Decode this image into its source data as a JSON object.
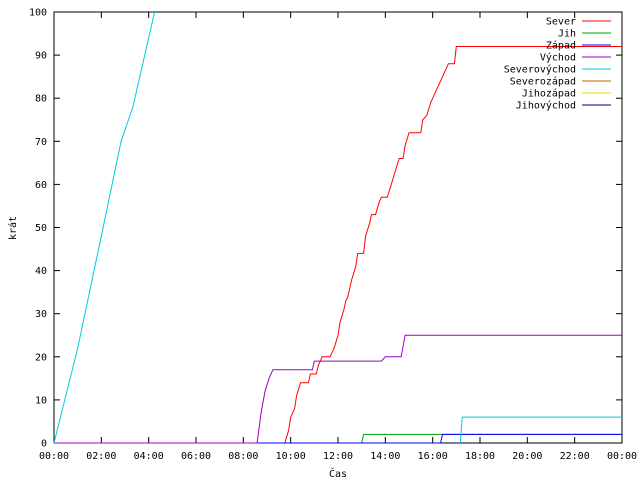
{
  "chart_data": {
    "type": "line",
    "xlabel": "Čas",
    "ylabel": "krát",
    "x_unit": "time of day (HH:MM)",
    "xlim": [
      "00:00",
      "24:00"
    ],
    "ylim": [
      0,
      100
    ],
    "x_ticks": [
      "00:00",
      "02:00",
      "04:00",
      "06:00",
      "08:00",
      "10:00",
      "12:00",
      "14:00",
      "16:00",
      "18:00",
      "20:00",
      "22:00",
      "00:00"
    ],
    "y_ticks": [
      0,
      10,
      20,
      30,
      40,
      50,
      60,
      70,
      80,
      90,
      100
    ],
    "grid": false,
    "legend_position": "top-right",
    "series": [
      {
        "name": "Sever",
        "color": "#ff0000",
        "points": [
          [
            "09:45",
            0
          ],
          [
            "09:55",
            3
          ],
          [
            "10:00",
            6
          ],
          [
            "10:10",
            8
          ],
          [
            "10:15",
            11
          ],
          [
            "10:25",
            14
          ],
          [
            "10:45",
            14
          ],
          [
            "10:50",
            16
          ],
          [
            "11:05",
            16
          ],
          [
            "11:10",
            18
          ],
          [
            "11:20",
            20
          ],
          [
            "11:40",
            20
          ],
          [
            "11:50",
            22
          ],
          [
            "12:00",
            25
          ],
          [
            "12:05",
            28
          ],
          [
            "12:15",
            31
          ],
          [
            "12:20",
            33
          ],
          [
            "12:25",
            34
          ],
          [
            "12:35",
            38
          ],
          [
            "12:45",
            41
          ],
          [
            "12:50",
            44
          ],
          [
            "13:05",
            44
          ],
          [
            "13:10",
            48
          ],
          [
            "13:20",
            51
          ],
          [
            "13:25",
            53
          ],
          [
            "13:35",
            53
          ],
          [
            "13:45",
            56
          ],
          [
            "13:50",
            57
          ],
          [
            "14:05",
            57
          ],
          [
            "14:15",
            60
          ],
          [
            "14:25",
            63
          ],
          [
            "14:35",
            66
          ],
          [
            "14:45",
            66
          ],
          [
            "14:50",
            69
          ],
          [
            "15:00",
            72
          ],
          [
            "15:30",
            72
          ],
          [
            "15:35",
            75
          ],
          [
            "15:45",
            76
          ],
          [
            "15:55",
            79
          ],
          [
            "16:00",
            80
          ],
          [
            "16:10",
            82
          ],
          [
            "16:20",
            84
          ],
          [
            "16:30",
            86
          ],
          [
            "16:40",
            88
          ],
          [
            "16:55",
            88
          ],
          [
            "17:00",
            92
          ],
          [
            "24:00",
            92
          ]
        ]
      },
      {
        "name": "Jih",
        "color": "#00a000",
        "points": [
          [
            "00:00",
            0
          ],
          [
            "13:00",
            0
          ],
          [
            "13:05",
            2
          ],
          [
            "24:00",
            2
          ]
        ]
      },
      {
        "name": "Západ",
        "color": "#0000ff",
        "points": [
          [
            "00:00",
            0
          ],
          [
            "16:20",
            0
          ],
          [
            "16:25",
            2
          ],
          [
            "24:00",
            2
          ]
        ]
      },
      {
        "name": "Východ",
        "color": "#a000c0",
        "points": [
          [
            "00:00",
            0
          ],
          [
            "08:35",
            0
          ],
          [
            "08:45",
            7
          ],
          [
            "08:55",
            12
          ],
          [
            "09:05",
            15
          ],
          [
            "09:15",
            17
          ],
          [
            "10:55",
            17
          ],
          [
            "11:00",
            19
          ],
          [
            "13:50",
            19
          ],
          [
            "14:00",
            20
          ],
          [
            "14:40",
            20
          ],
          [
            "14:50",
            25
          ],
          [
            "24:00",
            25
          ]
        ]
      },
      {
        "name": "Severovýchod",
        "color": "#00c8e0",
        "points": [
          [
            "00:00",
            0
          ],
          [
            "01:00",
            22
          ],
          [
            "02:00",
            48
          ],
          [
            "02:50",
            70
          ],
          [
            "03:20",
            78
          ],
          [
            "04:15",
            100
          ],
          [
            "17:10",
            0
          ],
          [
            "17:15",
            6
          ],
          [
            "24:00",
            6
          ]
        ],
        "breaks_after_index": [
          5
        ]
      },
      {
        "name": "Severozápad",
        "color": "#c06000",
        "points": []
      },
      {
        "name": "Jihozápad",
        "color": "#e0e000",
        "points": []
      },
      {
        "name": "Jihovýchod",
        "color": "#000080",
        "points": []
      }
    ]
  }
}
